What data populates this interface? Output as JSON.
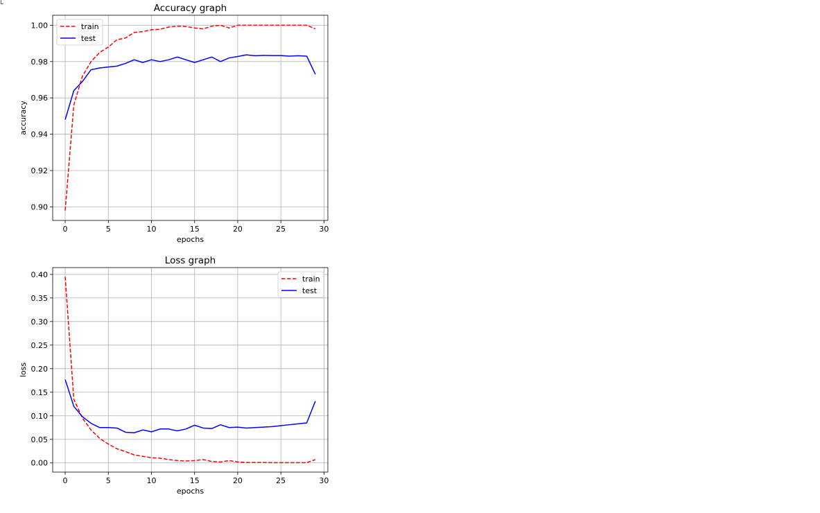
{
  "chart_data": [
    {
      "type": "line",
      "title": "Accuracy graph",
      "xlabel": "epochs",
      "ylabel": "accuracy",
      "xlim": [
        -1.45,
        30.45
      ],
      "ylim": [
        0.8925,
        1.0055
      ],
      "xticks": [
        0,
        5,
        10,
        15,
        20,
        25,
        30
      ],
      "yticks": [
        0.9,
        0.92,
        0.94,
        0.96,
        0.98,
        1.0
      ],
      "ytick_labels": [
        "0.90",
        "0.92",
        "0.94",
        "0.96",
        "0.98",
        "1.00"
      ],
      "grid": true,
      "legend_position": "upper left",
      "x": [
        0,
        1,
        2,
        3,
        4,
        5,
        6,
        7,
        8,
        9,
        10,
        11,
        12,
        13,
        14,
        15,
        16,
        17,
        18,
        19,
        20,
        21,
        22,
        23,
        24,
        25,
        26,
        27,
        28,
        29
      ],
      "series": [
        {
          "name": "train",
          "color": "#ff0000",
          "style": "dashed",
          "values": [
            0.898,
            0.956,
            0.972,
            0.98,
            0.985,
            0.988,
            0.992,
            0.993,
            0.996,
            0.9965,
            0.9975,
            0.9978,
            0.999,
            0.9995,
            0.9993,
            0.9985,
            0.998,
            0.9995,
            1.0,
            0.9985,
            1.0,
            1.0,
            1.0,
            1.0,
            1.0,
            1.0,
            1.0,
            1.0,
            1.0,
            0.998
          ]
        },
        {
          "name": "test",
          "color": "#0000ff",
          "style": "solid",
          "values": [
            0.948,
            0.964,
            0.969,
            0.9755,
            0.9765,
            0.977,
            0.9775,
            0.979,
            0.981,
            0.9795,
            0.981,
            0.98,
            0.981,
            0.9825,
            0.981,
            0.9795,
            0.981,
            0.9825,
            0.98,
            0.982,
            0.9828,
            0.9837,
            0.9832,
            0.9834,
            0.9833,
            0.9833,
            0.983,
            0.9832,
            0.983,
            0.973
          ]
        }
      ]
    },
    {
      "type": "line",
      "title": "Loss graph",
      "xlabel": "epochs",
      "ylabel": "loss",
      "xlim": [
        -1.45,
        30.45
      ],
      "ylim": [
        -0.0195,
        0.4145
      ],
      "xticks": [
        0,
        5,
        10,
        15,
        20,
        25,
        30
      ],
      "yticks": [
        0.0,
        0.05,
        0.1,
        0.15,
        0.2,
        0.25,
        0.3,
        0.35,
        0.4
      ],
      "ytick_labels": [
        "0.00",
        "0.05",
        "0.10",
        "0.15",
        "0.20",
        "0.25",
        "0.30",
        "0.35",
        "0.40"
      ],
      "grid": true,
      "legend_position": "upper right",
      "x": [
        0,
        1,
        2,
        3,
        4,
        5,
        6,
        7,
        8,
        9,
        10,
        11,
        12,
        13,
        14,
        15,
        16,
        17,
        18,
        19,
        20,
        21,
        22,
        23,
        24,
        25,
        26,
        27,
        28,
        29
      ],
      "series": [
        {
          "name": "train",
          "color": "#ff0000",
          "style": "dashed",
          "values": [
            0.395,
            0.135,
            0.095,
            0.07,
            0.052,
            0.04,
            0.03,
            0.024,
            0.017,
            0.014,
            0.011,
            0.01,
            0.007,
            0.005,
            0.004,
            0.005,
            0.007,
            0.003,
            0.002,
            0.005,
            0.002,
            0.001,
            0.001,
            0.001,
            0.0005,
            0.0005,
            0.0005,
            0.0005,
            0.0005,
            0.007
          ]
        },
        {
          "name": "test",
          "color": "#0000ff",
          "style": "solid",
          "values": [
            0.177,
            0.12,
            0.098,
            0.084,
            0.075,
            0.075,
            0.074,
            0.065,
            0.064,
            0.07,
            0.066,
            0.072,
            0.072,
            0.068,
            0.072,
            0.08,
            0.074,
            0.073,
            0.081,
            0.075,
            0.076,
            0.074,
            0.075,
            0.076,
            0.077,
            0.079,
            0.081,
            0.083,
            0.085,
            0.131
          ]
        }
      ]
    }
  ]
}
